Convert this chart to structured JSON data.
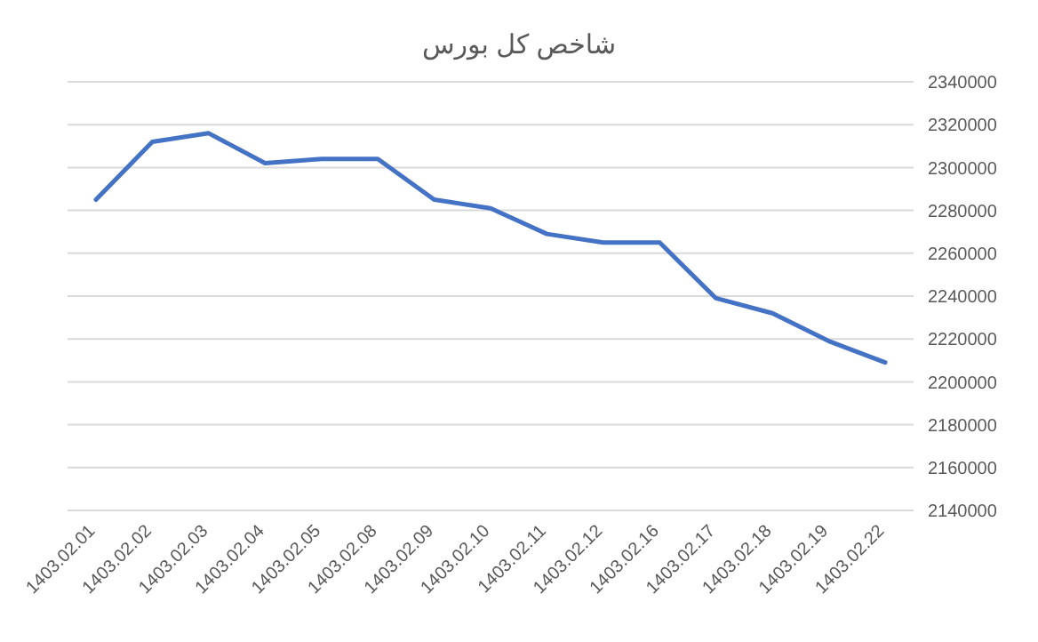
{
  "chart_data": {
    "type": "line",
    "title": "شاخص کل بورس",
    "categories": [
      "1403.02.01",
      "1403.02.02",
      "1403.02.03",
      "1403.02.04",
      "1403.02.05",
      "1403.02.08",
      "1403.02.09",
      "1403.02.10",
      "1403.02.11",
      "1403.02.12",
      "1403.02.16",
      "1403.02.17",
      "1403.02.18",
      "1403.02.19",
      "1403.02.22"
    ],
    "series": [
      {
        "color": "#4472c4",
        "values": [
          2285000,
          2312000,
          2316000,
          2302000,
          2304000,
          2304000,
          2285000,
          2281000,
          2269000,
          2265000,
          2265000,
          2239000,
          2232000,
          2219000,
          2209000
        ]
      }
    ],
    "ylim": [
      2140000,
      2340000
    ],
    "yticks": [
      2140000,
      2160000,
      2180000,
      2200000,
      2220000,
      2240000,
      2260000,
      2280000,
      2300000,
      2320000,
      2340000
    ],
    "grid": "y",
    "legend": false,
    "marker": "none",
    "line_style": "solid"
  }
}
